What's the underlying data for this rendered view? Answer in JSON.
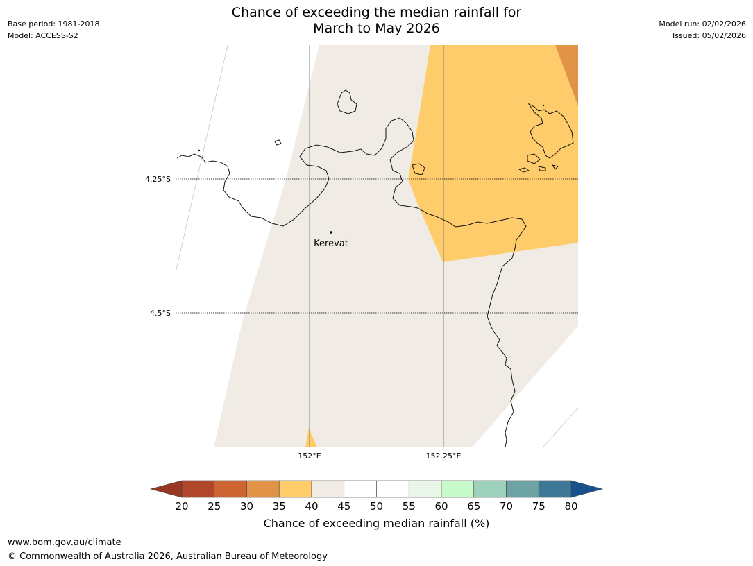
{
  "header": {
    "title_line1": "Chance of exceeding the median rainfall for",
    "title_line2": "March to May 2026",
    "base_period": "Base period: 1981-2018",
    "model": "Model: ACCESS-S2",
    "model_run": "Model run: 02/02/2026",
    "issued": "Issued: 05/02/2026"
  },
  "map": {
    "lat_labels": [
      "4.25°S",
      "4.5°S"
    ],
    "lon_labels": [
      "152°E",
      "152.25°E"
    ],
    "place": "Kerevat"
  },
  "colorbar": {
    "ticks": [
      "20",
      "25",
      "30",
      "35",
      "40",
      "45",
      "50",
      "55",
      "60",
      "65",
      "70",
      "75",
      "80"
    ],
    "colors": [
      "#b0462a",
      "#cc6532",
      "#e19447",
      "#fecc6a",
      "#f0ebe5",
      "#ffffff",
      "#ffffff",
      "#eaf6e9",
      "#c8fbc9",
      "#9dd1bb",
      "#6ea3a5",
      "#3f7796"
    ],
    "under_color": "#983822",
    "over_color": "#17518e",
    "label": "Chance of exceeding median rainfall (%)"
  },
  "footer": {
    "url": "www.bom.gov.au/climate",
    "copyright": "© Commonwealth of Australia 2026, Australian Bureau of Meteorology"
  }
}
